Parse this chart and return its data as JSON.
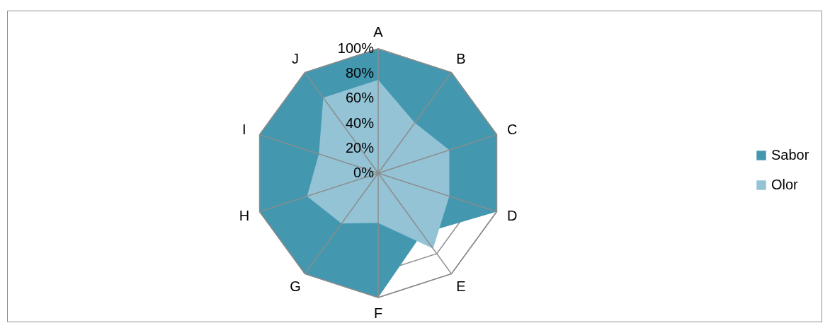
{
  "chart_data": {
    "type": "radar",
    "categories": [
      "A",
      "B",
      "C",
      "D",
      "E",
      "F",
      "G",
      "H",
      "I",
      "J"
    ],
    "series": [
      {
        "name": "Sabor",
        "color": "#4398b0",
        "values": [
          100,
          100,
          100,
          100,
          60,
          100,
          100,
          100,
          100,
          100
        ]
      },
      {
        "name": "Olor",
        "color": "#93c3d5",
        "values": [
          75,
          50,
          60,
          60,
          75,
          40,
          50,
          60,
          50,
          75
        ]
      }
    ],
    "ylim": [
      0,
      100
    ],
    "yticks": [
      {
        "value": 0,
        "label": "0%"
      },
      {
        "value": 20,
        "label": "20%"
      },
      {
        "value": 40,
        "label": "40%"
      },
      {
        "value": 60,
        "label": "60%"
      },
      {
        "value": 80,
        "label": "80%"
      },
      {
        "value": 100,
        "label": "100%"
      }
    ],
    "grid": true,
    "legend": "right",
    "marker": "none"
  }
}
